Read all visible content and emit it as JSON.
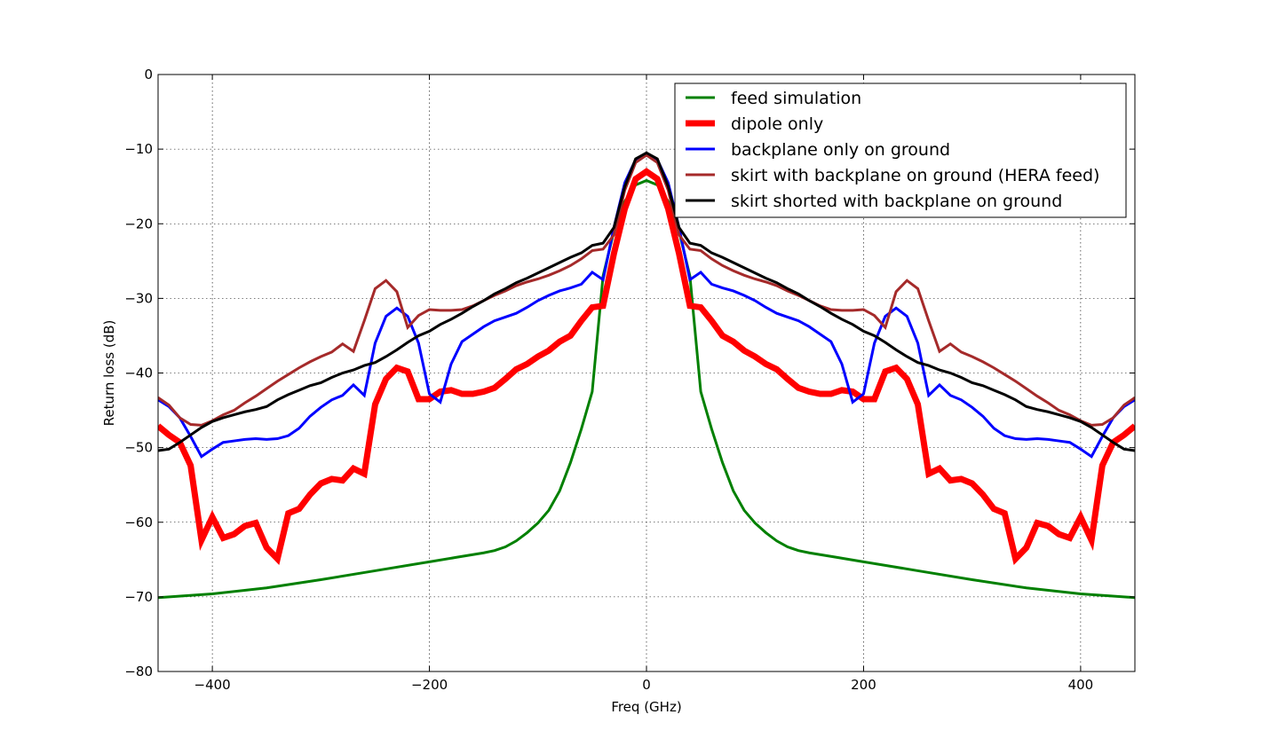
{
  "chart_data": {
    "type": "line",
    "title": "",
    "xlabel": "Freq (GHz)",
    "ylabel": "Return loss (dB)",
    "xlim": [
      -450,
      450
    ],
    "ylim": [
      -80,
      0
    ],
    "xticks": [
      -400,
      -200,
      0,
      200,
      400
    ],
    "yticks": [
      0,
      -10,
      -20,
      -30,
      -40,
      -50,
      -60,
      -70,
      -80
    ],
    "grid": true,
    "legend_position": "top-right",
    "series": [
      {
        "name": "feed simulation",
        "color": "#008000",
        "width": 3,
        "points": [
          [
            0,
            -14.2
          ],
          [
            10,
            -14.8
          ],
          [
            20,
            -17
          ],
          [
            30,
            -21
          ],
          [
            40,
            -27
          ],
          [
            50,
            -42.5
          ],
          [
            60,
            -47.5
          ],
          [
            70,
            -52
          ],
          [
            80,
            -55.8
          ],
          [
            90,
            -58.4
          ],
          [
            100,
            -60.1
          ],
          [
            110,
            -61.4
          ],
          [
            120,
            -62.5
          ],
          [
            130,
            -63.3
          ],
          [
            140,
            -63.8
          ],
          [
            150,
            -64.1
          ],
          [
            175,
            -64.7
          ],
          [
            200,
            -65.3
          ],
          [
            250,
            -66.5
          ],
          [
            300,
            -67.7
          ],
          [
            350,
            -68.8
          ],
          [
            400,
            -69.6
          ],
          [
            450,
            -70.1
          ]
        ]
      },
      {
        "name": "dipole only",
        "color": "#ff0000",
        "width": 7,
        "points": [
          [
            0,
            -13
          ],
          [
            10,
            -14
          ],
          [
            20,
            -18
          ],
          [
            30,
            -24
          ],
          [
            40,
            -31
          ],
          [
            50,
            -31.2
          ],
          [
            60,
            -33
          ],
          [
            70,
            -35
          ],
          [
            80,
            -35.8
          ],
          [
            90,
            -37
          ],
          [
            100,
            -37.8
          ],
          [
            110,
            -38.8
          ],
          [
            120,
            -39.5
          ],
          [
            130,
            -40.8
          ],
          [
            140,
            -42
          ],
          [
            150,
            -42.5
          ],
          [
            160,
            -42.8
          ],
          [
            170,
            -42.8
          ],
          [
            180,
            -42.3
          ],
          [
            190,
            -42.5
          ],
          [
            200,
            -43.5
          ],
          [
            210,
            -43.5
          ],
          [
            220,
            -39.8
          ],
          [
            230,
            -39.3
          ],
          [
            240,
            -40.8
          ],
          [
            250,
            -44.2
          ],
          [
            260,
            -53.5
          ],
          [
            270,
            -52.8
          ],
          [
            280,
            -54.4
          ],
          [
            290,
            -54.2
          ],
          [
            300,
            -54.8
          ],
          [
            310,
            -56.3
          ],
          [
            320,
            -58.2
          ],
          [
            330,
            -58.8
          ],
          [
            340,
            -64.9
          ],
          [
            350,
            -63.4
          ],
          [
            360,
            -60.1
          ],
          [
            370,
            -60.5
          ],
          [
            380,
            -61.6
          ],
          [
            390,
            -62.1
          ],
          [
            400,
            -59.3
          ],
          [
            410,
            -62.4
          ],
          [
            420,
            -52.4
          ],
          [
            430,
            -49.3
          ],
          [
            440,
            -48.3
          ],
          [
            450,
            -47.1
          ]
        ]
      },
      {
        "name": "backplane only on ground",
        "color": "#0000ff",
        "width": 3,
        "points": [
          [
            0,
            -10.8
          ],
          [
            10,
            -11.4
          ],
          [
            20,
            -14.5
          ],
          [
            30,
            -20.5
          ],
          [
            40,
            -27.5
          ],
          [
            50,
            -26.5
          ],
          [
            60,
            -28.1
          ],
          [
            70,
            -28.6
          ],
          [
            80,
            -29
          ],
          [
            90,
            -29.6
          ],
          [
            100,
            -30.3
          ],
          [
            110,
            -31.2
          ],
          [
            120,
            -32
          ],
          [
            130,
            -32.5
          ],
          [
            140,
            -33
          ],
          [
            150,
            -33.8
          ],
          [
            160,
            -34.8
          ],
          [
            170,
            -35.8
          ],
          [
            180,
            -38.8
          ],
          [
            190,
            -43.9
          ],
          [
            200,
            -42.8
          ],
          [
            210,
            -36
          ],
          [
            220,
            -32.4
          ],
          [
            230,
            -31.3
          ],
          [
            240,
            -32.4
          ],
          [
            250,
            -36
          ],
          [
            260,
            -43
          ],
          [
            270,
            -41.6
          ],
          [
            280,
            -43
          ],
          [
            290,
            -43.6
          ],
          [
            300,
            -44.6
          ],
          [
            310,
            -45.8
          ],
          [
            320,
            -47.4
          ],
          [
            330,
            -48.4
          ],
          [
            340,
            -48.8
          ],
          [
            350,
            -48.9
          ],
          [
            360,
            -48.8
          ],
          [
            370,
            -48.9
          ],
          [
            380,
            -49.1
          ],
          [
            390,
            -49.3
          ],
          [
            400,
            -50.2
          ],
          [
            410,
            -51.2
          ],
          [
            420,
            -48.5
          ],
          [
            430,
            -46
          ],
          [
            440,
            -44.5
          ],
          [
            450,
            -43.6
          ]
        ]
      },
      {
        "name": "skirt with backplane on ground (HERA feed)",
        "color": "#a52a2a",
        "width": 3,
        "points": [
          [
            0,
            -10.8
          ],
          [
            10,
            -11.8
          ],
          [
            20,
            -15.5
          ],
          [
            30,
            -21.5
          ],
          [
            40,
            -23.4
          ],
          [
            50,
            -23.6
          ],
          [
            60,
            -24.7
          ],
          [
            70,
            -25.6
          ],
          [
            80,
            -26.3
          ],
          [
            90,
            -26.9
          ],
          [
            100,
            -27.4
          ],
          [
            110,
            -27.8
          ],
          [
            120,
            -28.3
          ],
          [
            130,
            -29
          ],
          [
            140,
            -29.6
          ],
          [
            150,
            -30.3
          ],
          [
            160,
            -31
          ],
          [
            170,
            -31.5
          ],
          [
            180,
            -31.6
          ],
          [
            190,
            -31.6
          ],
          [
            200,
            -31.5
          ],
          [
            210,
            -32.3
          ],
          [
            220,
            -33.9
          ],
          [
            230,
            -29.1
          ],
          [
            240,
            -27.6
          ],
          [
            250,
            -28.7
          ],
          [
            260,
            -33
          ],
          [
            270,
            -37.1
          ],
          [
            280,
            -36.1
          ],
          [
            290,
            -37.2
          ],
          [
            300,
            -37.8
          ],
          [
            310,
            -38.5
          ],
          [
            320,
            -39.3
          ],
          [
            330,
            -40.2
          ],
          [
            340,
            -41.1
          ],
          [
            350,
            -42.1
          ],
          [
            360,
            -43.1
          ],
          [
            370,
            -44
          ],
          [
            380,
            -45
          ],
          [
            390,
            -45.6
          ],
          [
            400,
            -46.4
          ],
          [
            410,
            -47
          ],
          [
            420,
            -46.9
          ],
          [
            430,
            -46
          ],
          [
            440,
            -44.3
          ],
          [
            450,
            -43.3
          ]
        ]
      },
      {
        "name": "skirt shorted with backplane on ground",
        "color": "#000000",
        "width": 3,
        "points": [
          [
            0,
            -10.5
          ],
          [
            10,
            -11.3
          ],
          [
            20,
            -15
          ],
          [
            30,
            -20.5
          ],
          [
            40,
            -22.6
          ],
          [
            50,
            -22.9
          ],
          [
            60,
            -23.9
          ],
          [
            70,
            -24.5
          ],
          [
            80,
            -25.2
          ],
          [
            90,
            -25.9
          ],
          [
            100,
            -26.6
          ],
          [
            110,
            -27.3
          ],
          [
            120,
            -27.9
          ],
          [
            130,
            -28.7
          ],
          [
            140,
            -29.4
          ],
          [
            150,
            -30.3
          ],
          [
            160,
            -31.1
          ],
          [
            170,
            -32
          ],
          [
            180,
            -32.8
          ],
          [
            190,
            -33.5
          ],
          [
            200,
            -34.4
          ],
          [
            210,
            -35
          ],
          [
            220,
            -35.9
          ],
          [
            230,
            -36.9
          ],
          [
            240,
            -37.8
          ],
          [
            250,
            -38.6
          ],
          [
            260,
            -39
          ],
          [
            270,
            -39.6
          ],
          [
            280,
            -40
          ],
          [
            290,
            -40.6
          ],
          [
            300,
            -41.3
          ],
          [
            310,
            -41.7
          ],
          [
            320,
            -42.3
          ],
          [
            330,
            -42.9
          ],
          [
            340,
            -43.6
          ],
          [
            350,
            -44.5
          ],
          [
            360,
            -44.9
          ],
          [
            370,
            -45.2
          ],
          [
            380,
            -45.6
          ],
          [
            390,
            -46
          ],
          [
            400,
            -46.5
          ],
          [
            410,
            -47.3
          ],
          [
            420,
            -48.3
          ],
          [
            430,
            -49.3
          ],
          [
            440,
            -50.2
          ],
          [
            450,
            -50.4
          ]
        ]
      }
    ]
  }
}
